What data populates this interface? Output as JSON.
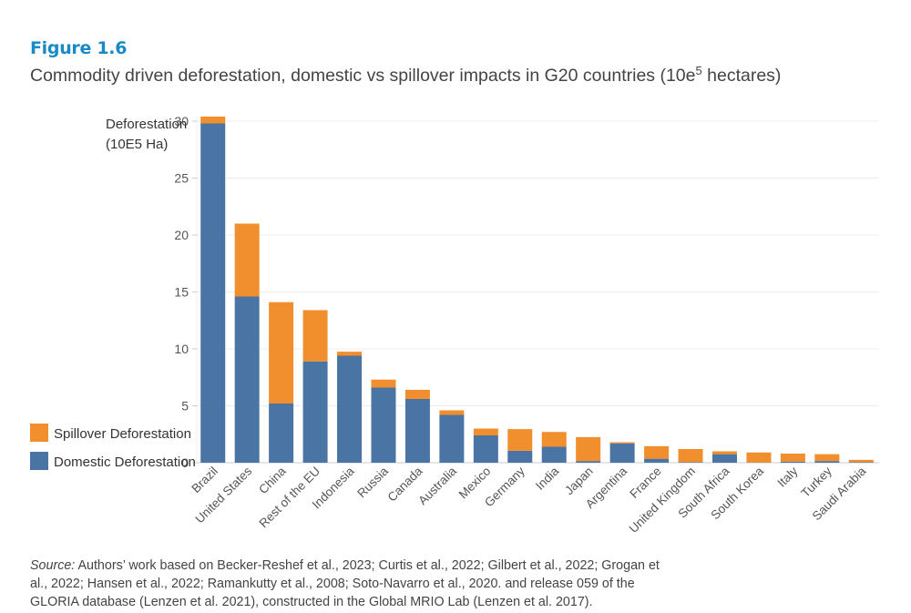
{
  "figure": {
    "label": "Figure 1.6",
    "title_main": "Commodity driven deforestation, domestic vs spillover impacts in G20 countries (10e",
    "title_sup": "5",
    "title_end": " hectares)"
  },
  "source": {
    "prefix": "Source:",
    "text": " Authors’ work based on Becker-Reshef et al., 2023; Curtis et al., 2022; Gilbert et al., 2022; Grogan et al., 2022; Hansen et al., 2022; Ramankutty et al., 2008; Soto-Navarro et al., 2020. and release 059 of the GLORIA database (Lenzen et al. 2021), constructed in the Global MRIO Lab (Lenzen et al. 2017)."
  },
  "colors": {
    "domestic": "#4a74a3",
    "spillover": "#f18e2d",
    "grid": "#ececf0",
    "axis_text": "#555555",
    "title_accent": "#1a8ac6"
  },
  "chart_data": {
    "type": "bar",
    "stacked": true,
    "title": "Commodity driven deforestation, domestic vs spillover impacts in G20 countries (10e5 hectares)",
    "ylabel_lines": [
      "Deforestation",
      "(10E5 Ha)"
    ],
    "xlabel": "",
    "ylim": [
      0,
      30
    ],
    "yticks": [
      0,
      5,
      10,
      15,
      20,
      25,
      30
    ],
    "grid": true,
    "legend_position": "bottom-left",
    "categories": [
      "Brazil",
      "United States",
      "China",
      "Rest of the EU",
      "Indonesia",
      "Russia",
      "Canada",
      "Australia",
      "Mexico",
      "Germany",
      "India",
      "Japan",
      "Argentina",
      "France",
      "United Kingdom",
      "South Africa",
      "South Korea",
      "Italy",
      "Turkey",
      "Saudi Arabia"
    ],
    "series": [
      {
        "name": "Domestic Deforestation",
        "color": "#4a74a3",
        "values": [
          29.8,
          14.6,
          5.2,
          8.9,
          9.4,
          6.6,
          5.6,
          4.2,
          2.4,
          1.05,
          1.4,
          0.15,
          1.7,
          0.35,
          0.05,
          0.75,
          0.02,
          0.1,
          0.15,
          0.05
        ]
      },
      {
        "name": "Spillover Deforestation",
        "color": "#f18e2d",
        "values": [
          0.6,
          6.4,
          8.9,
          4.5,
          0.35,
          0.7,
          0.8,
          0.4,
          0.6,
          1.9,
          1.3,
          2.1,
          0.1,
          1.1,
          1.15,
          0.25,
          0.88,
          0.7,
          0.6,
          0.2
        ]
      }
    ],
    "legend": [
      {
        "name": "Spillover Deforestation",
        "color": "#f18e2d"
      },
      {
        "name": "Domestic Deforestation",
        "color": "#4a74a3"
      }
    ]
  }
}
